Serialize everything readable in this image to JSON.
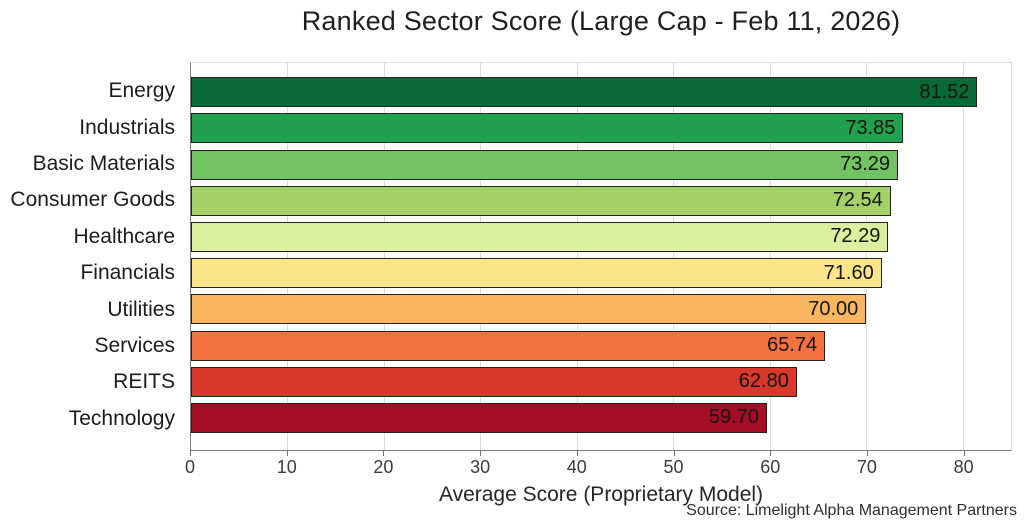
{
  "title": "Ranked Sector Score (Large Cap - Feb 11, 2026)",
  "chart_data": {
    "type": "bar",
    "orientation": "horizontal",
    "title": "Ranked Sector Score (Large Cap - Feb 11, 2026)",
    "xlabel": "Average Score (Proprietary Model)",
    "ylabel": "",
    "source": "Source: Limelight Alpha Management Partners",
    "grid": "vertical-only",
    "legend": "none",
    "xlim": [
      0,
      85
    ],
    "xticks": [
      0,
      10,
      20,
      30,
      40,
      50,
      60,
      70,
      80
    ],
    "xtick_labels": [
      "0",
      "10",
      "20",
      "30",
      "40",
      "50",
      "60",
      "70",
      "80"
    ],
    "categories": [
      "Energy",
      "Industrials",
      "Basic Materials",
      "Consumer Goods",
      "Healthcare",
      "Financials",
      "Utilities",
      "Services",
      "REITS",
      "Technology"
    ],
    "values": [
      81.52,
      73.85,
      73.29,
      72.54,
      72.29,
      71.6,
      70.0,
      65.74,
      62.8,
      59.7
    ],
    "value_labels": [
      "81.52",
      "73.85",
      "73.29",
      "72.54",
      "72.29",
      "71.60",
      "70.00",
      "65.74",
      "62.80",
      "59.70"
    ],
    "bar_colors": [
      "#0a6a35",
      "#21a150",
      "#73c364",
      "#a3d168",
      "#dcefa0",
      "#fae58b",
      "#f9b55f",
      "#f47241",
      "#d7382b",
      "#a50d26"
    ],
    "bar_edge_color": "#23231a",
    "gridline_color": "#dcdcdc",
    "axis_color": "#7d7d7d"
  }
}
